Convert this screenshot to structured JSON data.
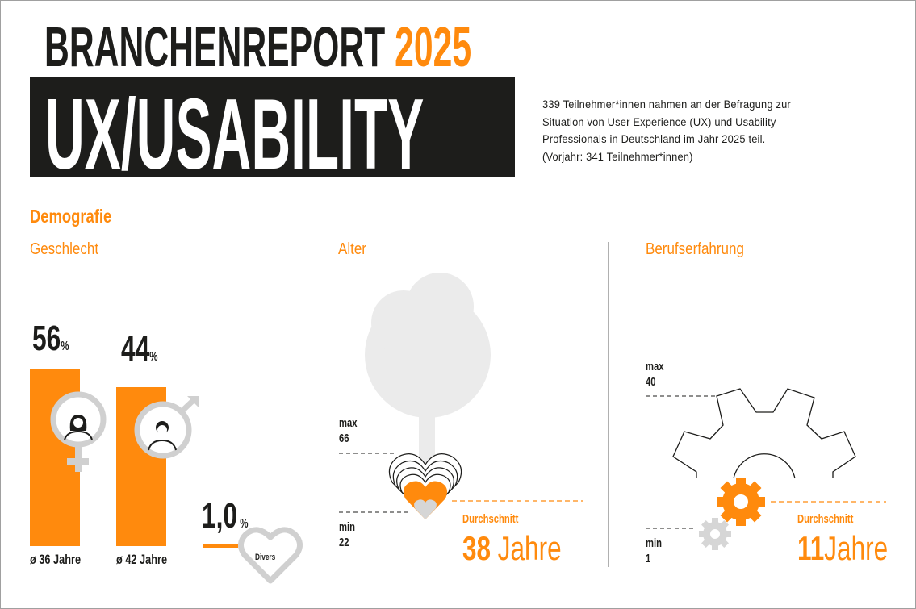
{
  "header": {
    "title_prefix": "BRANCHENREPORT",
    "title_year": "2025",
    "title_main": "UX/USABILITY",
    "intro": [
      "339 Teilnehmer*innen nahmen an der Befragung zur",
      "Situation von User Experience (UX) und Usability",
      "Professionals in Deutschland im Jahr 2025 teil.",
      "(Vorjahr: 341 Teilnehmer*innen)"
    ]
  },
  "section_title": "Demografie",
  "gender": {
    "title": "Geschlecht",
    "female": {
      "value": "56",
      "unit": "%",
      "avg_age": "ø 36 Jahre",
      "percent": 56
    },
    "male": {
      "value": "44",
      "unit": "%",
      "avg_age": "ø 42 Jahre",
      "percent": 44
    },
    "diverse": {
      "value": "1,0",
      "unit": "%",
      "label": "Divers",
      "percent": 1
    }
  },
  "age": {
    "title": "Alter",
    "max_label": "max",
    "max": "66",
    "min_label": "min",
    "min": "22",
    "avg_label": "Durchschnitt",
    "avg_value": "38",
    "avg_unit": "Jahre"
  },
  "experience": {
    "title": "Berufserfahrung",
    "max_label": "max",
    "max": "40",
    "min_label": "min",
    "min": "1",
    "avg_label": "Durchschnitt",
    "avg_value": "11",
    "avg_unit": "Jahre"
  },
  "colors": {
    "accent": "#ff8a0d",
    "dark": "#1d1d1b",
    "grey": "#d0d0d0"
  }
}
